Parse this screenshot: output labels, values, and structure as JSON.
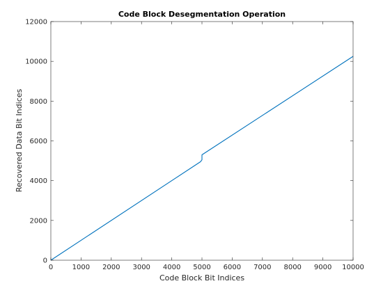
{
  "chart_data": {
    "type": "line",
    "title": "Code Block Desegmentation Operation",
    "xlabel": "Code Block Bit Indices",
    "ylabel": "Recovered Data Bit Indices",
    "xlim": [
      0,
      10000
    ],
    "ylim": [
      0,
      12000
    ],
    "xticks": [
      0,
      1000,
      2000,
      3000,
      4000,
      5000,
      6000,
      7000,
      8000,
      9000,
      10000
    ],
    "yticks": [
      0,
      2000,
      4000,
      6000,
      8000,
      10000,
      12000
    ],
    "grid": false,
    "series": [
      {
        "color": "#0072BD",
        "x": [
          0,
          4950,
          5000,
          5000,
          10000
        ],
        "y": [
          0,
          4950,
          5050,
          5300,
          10250
        ]
      }
    ]
  }
}
